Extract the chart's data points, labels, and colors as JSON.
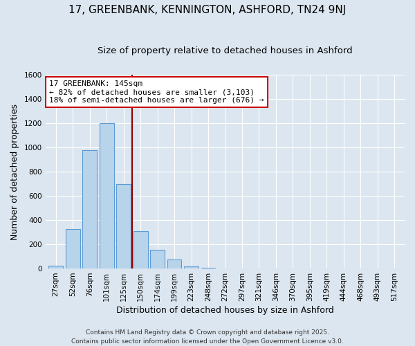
{
  "title": "17, GREENBANK, KENNINGTON, ASHFORD, TN24 9NJ",
  "subtitle": "Size of property relative to detached houses in Ashford",
  "xlabel": "Distribution of detached houses by size in Ashford",
  "ylabel": "Number of detached properties",
  "categories": [
    "27sqm",
    "52sqm",
    "76sqm",
    "101sqm",
    "125sqm",
    "150sqm",
    "174sqm",
    "199sqm",
    "223sqm",
    "248sqm",
    "272sqm",
    "297sqm",
    "321sqm",
    "346sqm",
    "370sqm",
    "395sqm",
    "419sqm",
    "444sqm",
    "468sqm",
    "493sqm",
    "517sqm"
  ],
  "values": [
    25,
    325,
    975,
    1200,
    700,
    310,
    155,
    75,
    20,
    8,
    2,
    0,
    0,
    0,
    0,
    0,
    0,
    0,
    0,
    0,
    2
  ],
  "bar_color": "#b8d4ea",
  "bar_edge_color": "#5b9bd5",
  "background_color": "#dce6f0",
  "grid_color": "#ffffff",
  "vline_color": "#8b0000",
  "vline_position": 4.5,
  "annotation_title": "17 GREENBANK: 145sqm",
  "annotation_line1": "← 82% of detached houses are smaller (3,103)",
  "annotation_line2": "18% of semi-detached houses are larger (676) →",
  "annotation_box_facecolor": "#ffffff",
  "annotation_box_edgecolor": "#cc0000",
  "ylim": [
    0,
    1600
  ],
  "yticks": [
    0,
    200,
    400,
    600,
    800,
    1000,
    1200,
    1400,
    1600
  ],
  "footnote1": "Contains HM Land Registry data © Crown copyright and database right 2025.",
  "footnote2": "Contains public sector information licensed under the Open Government Licence v3.0.",
  "title_fontsize": 11,
  "subtitle_fontsize": 9.5,
  "axis_label_fontsize": 9,
  "tick_fontsize": 7.5,
  "annotation_fontsize": 8,
  "footnote_fontsize": 6.5
}
